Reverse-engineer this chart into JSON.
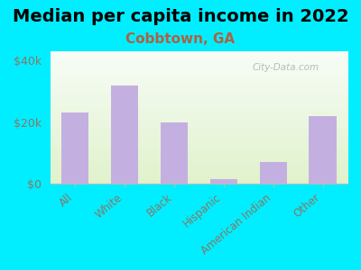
{
  "title": "Median per capita income in 2022",
  "subtitle": "Cobbtown, GA",
  "categories": [
    "All",
    "White",
    "Black",
    "Hispanic",
    "American Indian",
    "Other"
  ],
  "values": [
    23000,
    32000,
    20000,
    1500,
    7000,
    22000
  ],
  "bar_color": "#c4b0e0",
  "title_fontsize": 14,
  "subtitle_fontsize": 11,
  "subtitle_color": "#b06040",
  "background_color": "#00eeff",
  "tick_label_color": "#887766",
  "yticks": [
    0,
    20000,
    40000
  ],
  "ytick_labels": [
    "$0",
    "$20k",
    "$40k"
  ],
  "ylim": [
    0,
    43000
  ],
  "watermark": "City-Data.com"
}
